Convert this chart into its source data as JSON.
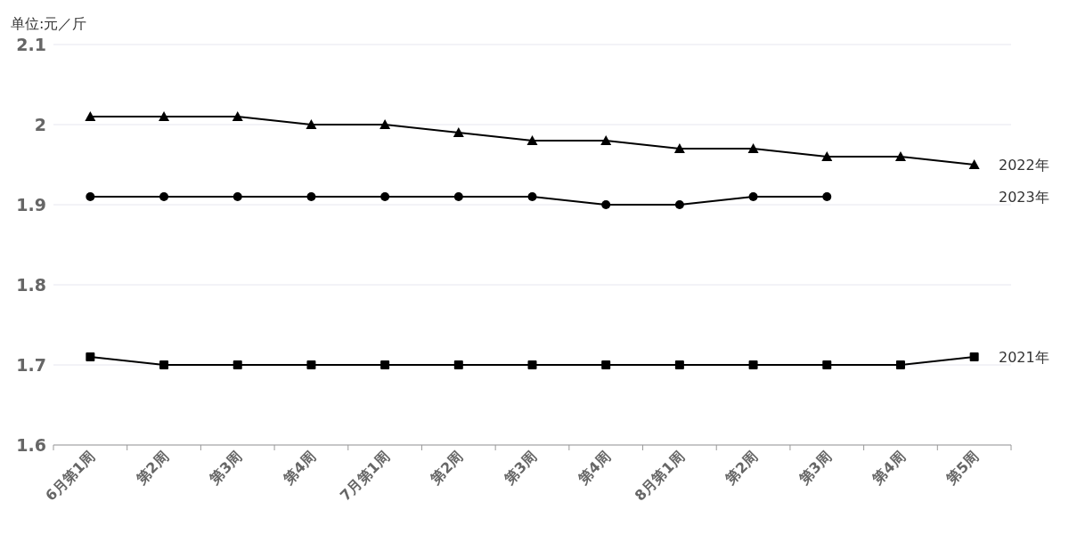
{
  "chart_data": {
    "type": "line",
    "ylabel": "单位:元／斤",
    "categories": [
      "6月第1周",
      "第2周",
      "第3周",
      "第4周",
      "7月第1周",
      "第2周",
      "第3周",
      "第4周",
      "8月第1周",
      "第2周",
      "第3周",
      "第4周",
      "第5周"
    ],
    "series": [
      {
        "name": "2022年",
        "color": "#000000",
        "marker": "triangle",
        "values": [
          2.01,
          2.01,
          2.01,
          2.0,
          2.0,
          1.99,
          1.98,
          1.98,
          1.97,
          1.97,
          1.96,
          1.96,
          1.95
        ]
      },
      {
        "name": "2023年",
        "color": "#000000",
        "marker": "circle",
        "values": [
          1.91,
          1.91,
          1.91,
          1.91,
          1.91,
          1.91,
          1.91,
          1.9,
          1.9,
          1.91,
          1.91,
          null,
          null
        ]
      },
      {
        "name": "2021年",
        "color": "#000000",
        "marker": "square",
        "values": [
          1.71,
          1.7,
          1.7,
          1.7,
          1.7,
          1.7,
          1.7,
          1.7,
          1.7,
          1.7,
          1.7,
          1.7,
          1.71
        ]
      }
    ],
    "ylim": [
      1.6,
      2.1
    ],
    "yticks": [
      1.6,
      1.7,
      1.8,
      1.9,
      2,
      2.1
    ],
    "grid": "y"
  }
}
